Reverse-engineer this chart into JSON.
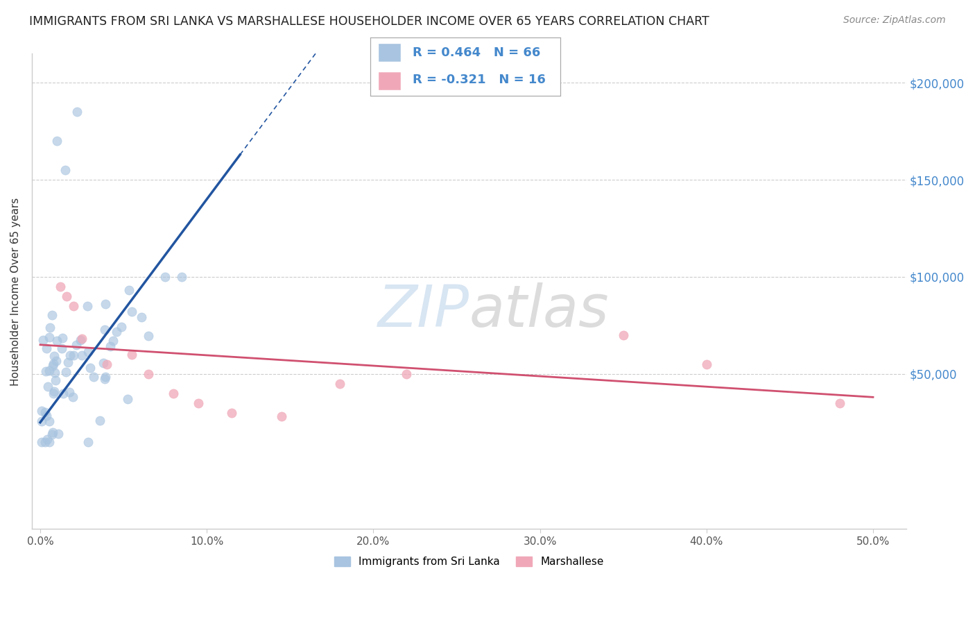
{
  "title": "IMMIGRANTS FROM SRI LANKA VS MARSHALLESE HOUSEHOLDER INCOME OVER 65 YEARS CORRELATION CHART",
  "source": "Source: ZipAtlas.com",
  "ylabel": "Householder Income Over 65 years",
  "xlabel_ticks": [
    "0.0%",
    "10.0%",
    "20.0%",
    "30.0%",
    "40.0%",
    "50.0%"
  ],
  "xlabel_vals": [
    0.0,
    0.1,
    0.2,
    0.3,
    0.4,
    0.5
  ],
  "ytick_labels": [
    "$50,000",
    "$100,000",
    "$150,000",
    "$200,000"
  ],
  "ytick_vals": [
    50000,
    100000,
    150000,
    200000
  ],
  "ylim": [
    -30000,
    215000
  ],
  "xlim": [
    -0.005,
    0.52
  ],
  "blue_R": 0.464,
  "blue_N": 66,
  "pink_R": -0.321,
  "pink_N": 16,
  "legend_label_blue": "Immigrants from Sri Lanka",
  "legend_label_pink": "Marshallese",
  "blue_color": "#a8c4e0",
  "blue_line_color": "#2255a0",
  "pink_color": "#f0a8b8",
  "pink_line_color": "#d05070",
  "watermark_zip": "ZIP",
  "watermark_atlas": "atlas",
  "grid_color": "#cccccc",
  "ytick_color": "#4488cc"
}
